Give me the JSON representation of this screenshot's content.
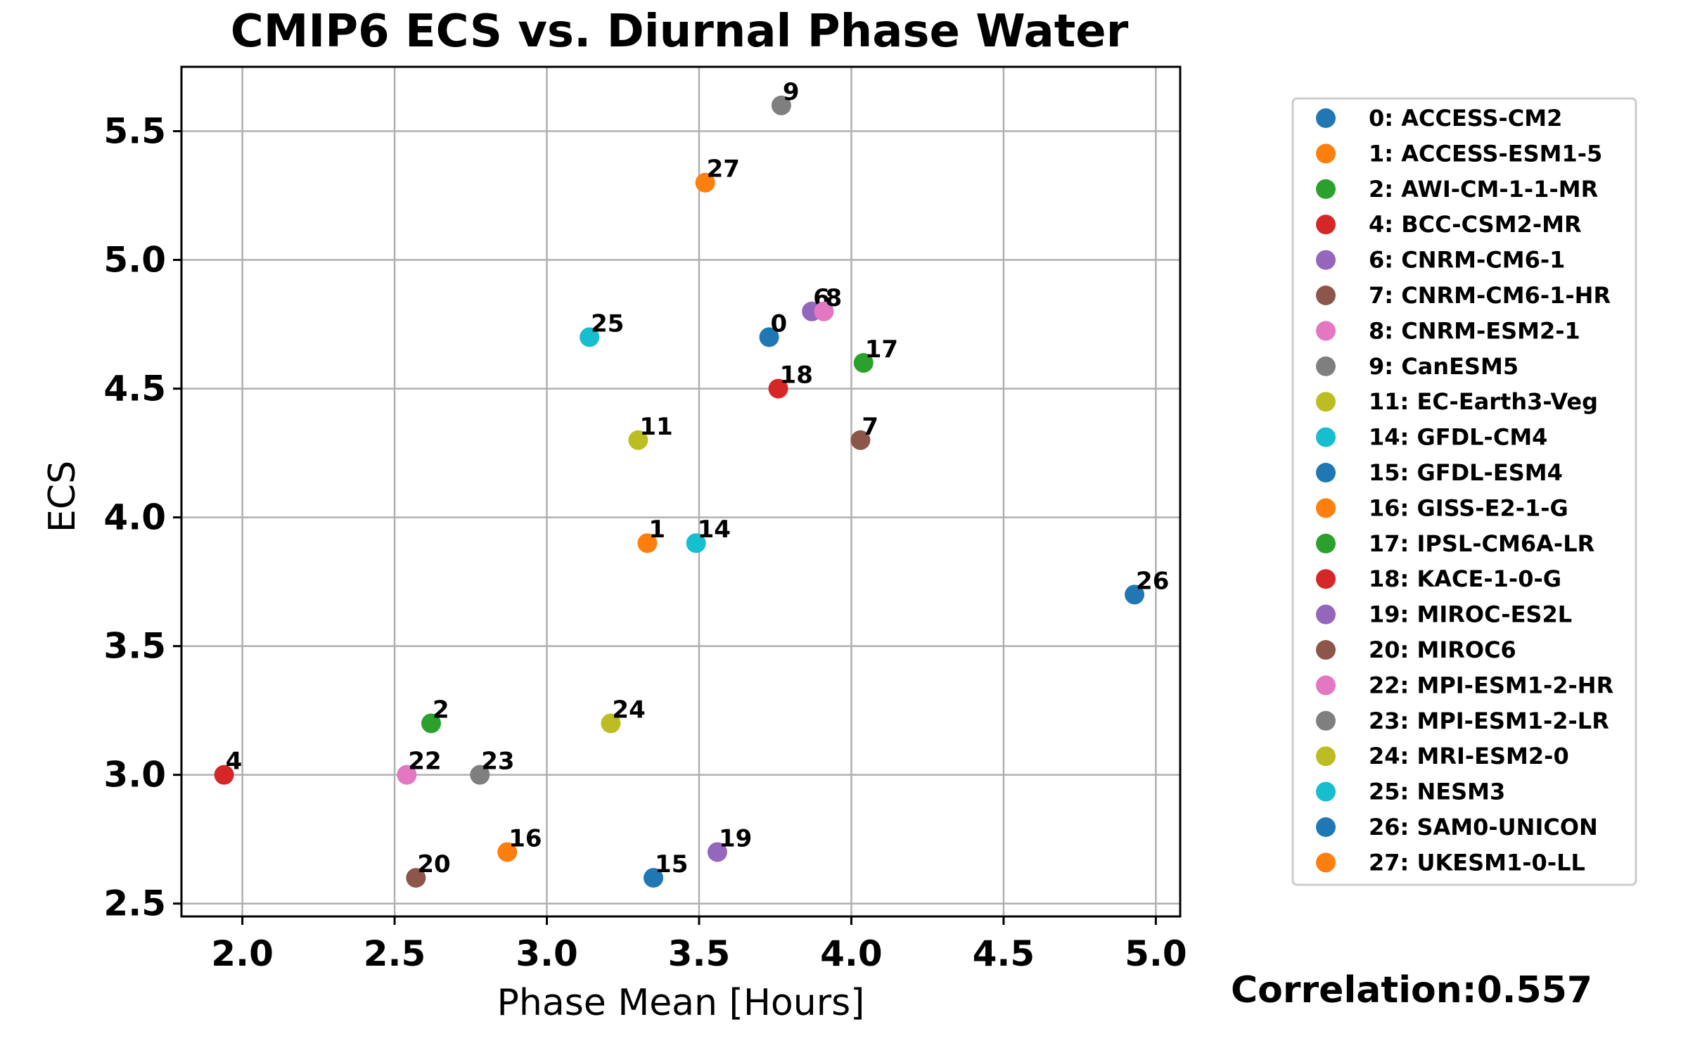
{
  "chart_data": {
    "type": "scatter",
    "title": "CMIP6 ECS vs. Diurnal Phase Water",
    "xlabel": "Phase Mean [Hours]",
    "ylabel": "ECS",
    "xlim": [
      1.8,
      5.08
    ],
    "ylim": [
      2.45,
      5.75
    ],
    "xticks": [
      "2.0",
      "2.5",
      "3.0",
      "3.5",
      "4.0",
      "4.5",
      "5.0"
    ],
    "yticks": [
      "2.5",
      "3.0",
      "3.5",
      "4.0",
      "4.5",
      "5.0",
      "5.5"
    ],
    "grid": true,
    "legend_placement": "right",
    "annotation": "Correlation:0.557",
    "points": [
      {
        "id": "0",
        "model": "ACCESS-CM2",
        "legend": "0: ACCESS-CM2",
        "x": 3.73,
        "y": 4.7,
        "color": "#1f77b4"
      },
      {
        "id": "1",
        "model": "ACCESS-ESM1-5",
        "legend": "1: ACCESS-ESM1-5",
        "x": 3.33,
        "y": 3.9,
        "color": "#ff7f0e"
      },
      {
        "id": "2",
        "model": "AWI-CM-1-1-MR",
        "legend": "2: AWI-CM-1-1-MR",
        "x": 2.62,
        "y": 3.2,
        "color": "#2ca02c"
      },
      {
        "id": "4",
        "model": "BCC-CSM2-MR",
        "legend": "4: BCC-CSM2-MR",
        "x": 1.94,
        "y": 3.0,
        "color": "#d62728"
      },
      {
        "id": "6",
        "model": "CNRM-CM6-1",
        "legend": "6: CNRM-CM6-1",
        "x": 3.87,
        "y": 4.8,
        "color": "#9467bd"
      },
      {
        "id": "7",
        "model": "CNRM-CM6-1-HR",
        "legend": "7: CNRM-CM6-1-HR",
        "x": 4.03,
        "y": 4.3,
        "color": "#8c564b"
      },
      {
        "id": "8",
        "model": "CNRM-ESM2-1",
        "legend": "8: CNRM-ESM2-1",
        "x": 3.91,
        "y": 4.8,
        "color": "#e377c2"
      },
      {
        "id": "9",
        "model": "CanESM5",
        "legend": "9: CanESM5",
        "x": 3.77,
        "y": 5.6,
        "color": "#7f7f7f"
      },
      {
        "id": "11",
        "model": "EC-Earth3-Veg",
        "legend": "11: EC-Earth3-Veg",
        "x": 3.3,
        "y": 4.3,
        "color": "#bcbd22"
      },
      {
        "id": "14",
        "model": "GFDL-CM4",
        "legend": "14: GFDL-CM4",
        "x": 3.49,
        "y": 3.9,
        "color": "#17becf"
      },
      {
        "id": "15",
        "model": "GFDL-ESM4",
        "legend": "15: GFDL-ESM4",
        "x": 3.35,
        "y": 2.6,
        "color": "#1f77b4"
      },
      {
        "id": "16",
        "model": "GISS-E2-1-G",
        "legend": "16: GISS-E2-1-G",
        "x": 2.87,
        "y": 2.7,
        "color": "#ff7f0e"
      },
      {
        "id": "17",
        "model": "IPSL-CM6A-LR",
        "legend": "17: IPSL-CM6A-LR",
        "x": 4.04,
        "y": 4.6,
        "color": "#2ca02c"
      },
      {
        "id": "18",
        "model": "KACE-1-0-G",
        "legend": "18: KACE-1-0-G",
        "x": 3.76,
        "y": 4.5,
        "color": "#d62728"
      },
      {
        "id": "19",
        "model": "MIROC-ES2L",
        "legend": "19: MIROC-ES2L",
        "x": 3.56,
        "y": 2.7,
        "color": "#9467bd"
      },
      {
        "id": "20",
        "model": "MIROC6",
        "legend": "20: MIROC6",
        "x": 2.57,
        "y": 2.6,
        "color": "#8c564b"
      },
      {
        "id": "22",
        "model": "MPI-ESM1-2-HR",
        "legend": "22: MPI-ESM1-2-HR",
        "x": 2.54,
        "y": 3.0,
        "color": "#e377c2"
      },
      {
        "id": "23",
        "model": "MPI-ESM1-2-LR",
        "legend": "23: MPI-ESM1-2-LR",
        "x": 2.78,
        "y": 3.0,
        "color": "#7f7f7f"
      },
      {
        "id": "24",
        "model": "MRI-ESM2-0",
        "legend": "24: MRI-ESM2-0",
        "x": 3.21,
        "y": 3.2,
        "color": "#bcbd22"
      },
      {
        "id": "25",
        "model": "NESM3",
        "legend": "25: NESM3",
        "x": 3.14,
        "y": 4.7,
        "color": "#17becf"
      },
      {
        "id": "26",
        "model": "SAM0-UNICON",
        "legend": "26: SAM0-UNICON",
        "x": 4.93,
        "y": 3.7,
        "color": "#1f77b4"
      },
      {
        "id": "27",
        "model": "UKESM1-0-LL",
        "legend": "27: UKESM1-0-LL",
        "x": 3.52,
        "y": 5.3,
        "color": "#ff7f0e"
      }
    ]
  }
}
